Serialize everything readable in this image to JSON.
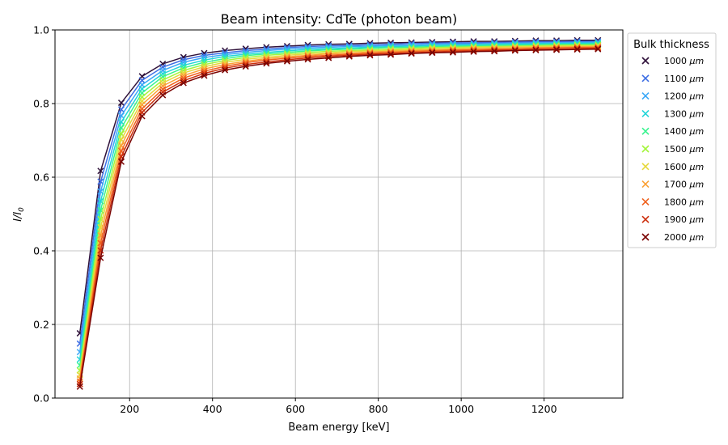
{
  "chart_data": {
    "type": "line",
    "title": "Beam intensity: CdTe (photon beam)",
    "xlabel": "Beam energy [keV]",
    "ylabel": "I/I",
    "ylabel_sub": "0",
    "xlim": [
      20,
      1390
    ],
    "ylim": [
      0.0,
      1.0
    ],
    "xticks": [
      200,
      400,
      600,
      800,
      1000,
      1200
    ],
    "yticks": [
      0.0,
      0.2,
      0.4,
      0.6,
      0.8,
      1.0
    ],
    "grid": true,
    "legend_title": "Bulk thickness",
    "legend_placement": "outside-top-right",
    "marker": "x",
    "x": [
      80,
      130,
      180,
      230,
      280,
      330,
      380,
      430,
      480,
      530,
      580,
      630,
      680,
      730,
      780,
      830,
      880,
      930,
      980,
      1030,
      1080,
      1130,
      1180,
      1230,
      1280,
      1330
    ],
    "series": [
      {
        "name": "1000",
        "unit": "μm",
        "color": "#30123b",
        "values": [
          0.176,
          0.617,
          0.802,
          0.874,
          0.908,
          0.926,
          0.937,
          0.944,
          0.949,
          0.953,
          0.956,
          0.959,
          0.961,
          0.962,
          0.964,
          0.965,
          0.966,
          0.967,
          0.968,
          0.969,
          0.969,
          0.97,
          0.971,
          0.971,
          0.972,
          0.972
        ]
      },
      {
        "name": "1100",
        "unit": "μm",
        "color": "#3e6ee4",
        "values": [
          0.148,
          0.588,
          0.784,
          0.863,
          0.899,
          0.919,
          0.931,
          0.938,
          0.944,
          0.948,
          0.952,
          0.955,
          0.957,
          0.958,
          0.96,
          0.961,
          0.963,
          0.964,
          0.965,
          0.965,
          0.966,
          0.967,
          0.968,
          0.968,
          0.969,
          0.969
        ]
      },
      {
        "name": "1200",
        "unit": "μm",
        "color": "#3ba8f7",
        "values": [
          0.125,
          0.561,
          0.767,
          0.851,
          0.89,
          0.912,
          0.925,
          0.933,
          0.939,
          0.944,
          0.948,
          0.951,
          0.953,
          0.955,
          0.956,
          0.958,
          0.959,
          0.961,
          0.962,
          0.962,
          0.963,
          0.964,
          0.965,
          0.965,
          0.966,
          0.967
        ]
      },
      {
        "name": "1300",
        "unit": "μm",
        "color": "#22d5d8",
        "values": [
          0.105,
          0.535,
          0.75,
          0.84,
          0.881,
          0.904,
          0.918,
          0.928,
          0.934,
          0.939,
          0.943,
          0.947,
          0.949,
          0.951,
          0.953,
          0.955,
          0.956,
          0.958,
          0.959,
          0.96,
          0.961,
          0.962,
          0.962,
          0.963,
          0.964,
          0.964
        ]
      },
      {
        "name": "1400",
        "unit": "μm",
        "color": "#38f38f",
        "values": [
          0.089,
          0.51,
          0.734,
          0.829,
          0.873,
          0.897,
          0.912,
          0.922,
          0.93,
          0.935,
          0.939,
          0.943,
          0.946,
          0.948,
          0.95,
          0.952,
          0.953,
          0.955,
          0.956,
          0.957,
          0.958,
          0.959,
          0.96,
          0.961,
          0.961,
          0.962
        ]
      },
      {
        "name": "1500",
        "unit": "μm",
        "color": "#a4f53c",
        "values": [
          0.075,
          0.486,
          0.718,
          0.818,
          0.864,
          0.89,
          0.906,
          0.917,
          0.925,
          0.931,
          0.935,
          0.939,
          0.942,
          0.944,
          0.946,
          0.948,
          0.95,
          0.952,
          0.953,
          0.954,
          0.955,
          0.956,
          0.957,
          0.958,
          0.959,
          0.959
        ]
      },
      {
        "name": "1600",
        "unit": "μm",
        "color": "#e6d83b",
        "values": [
          0.063,
          0.464,
          0.702,
          0.807,
          0.856,
          0.883,
          0.9,
          0.912,
          0.92,
          0.926,
          0.931,
          0.935,
          0.938,
          0.941,
          0.943,
          0.945,
          0.947,
          0.949,
          0.95,
          0.952,
          0.953,
          0.954,
          0.955,
          0.956,
          0.956,
          0.957
        ]
      },
      {
        "name": "1700",
        "unit": "μm",
        "color": "#fba135",
        "values": [
          0.053,
          0.442,
          0.686,
          0.797,
          0.848,
          0.876,
          0.894,
          0.906,
          0.915,
          0.922,
          0.927,
          0.931,
          0.935,
          0.937,
          0.94,
          0.942,
          0.944,
          0.946,
          0.947,
          0.949,
          0.95,
          0.951,
          0.952,
          0.953,
          0.954,
          0.955
        ]
      },
      {
        "name": "1800",
        "unit": "μm",
        "color": "#f0621f",
        "values": [
          0.045,
          0.421,
          0.671,
          0.786,
          0.839,
          0.869,
          0.888,
          0.901,
          0.911,
          0.918,
          0.923,
          0.928,
          0.931,
          0.934,
          0.937,
          0.939,
          0.941,
          0.943,
          0.945,
          0.946,
          0.947,
          0.948,
          0.95,
          0.951,
          0.952,
          0.952
        ]
      },
      {
        "name": "1900",
        "unit": "μm",
        "color": "#cc2e0c",
        "values": [
          0.038,
          0.401,
          0.656,
          0.776,
          0.831,
          0.862,
          0.882,
          0.896,
          0.906,
          0.913,
          0.919,
          0.924,
          0.928,
          0.931,
          0.934,
          0.936,
          0.938,
          0.94,
          0.942,
          0.943,
          0.945,
          0.946,
          0.947,
          0.948,
          0.949,
          0.95
        ]
      },
      {
        "name": "2000",
        "unit": "μm",
        "color": "#7a0403",
        "values": [
          0.031,
          0.381,
          0.642,
          0.766,
          0.823,
          0.856,
          0.876,
          0.891,
          0.901,
          0.909,
          0.915,
          0.92,
          0.924,
          0.928,
          0.931,
          0.933,
          0.936,
          0.938,
          0.939,
          0.941,
          0.942,
          0.944,
          0.945,
          0.946,
          0.947,
          0.948
        ]
      }
    ]
  }
}
